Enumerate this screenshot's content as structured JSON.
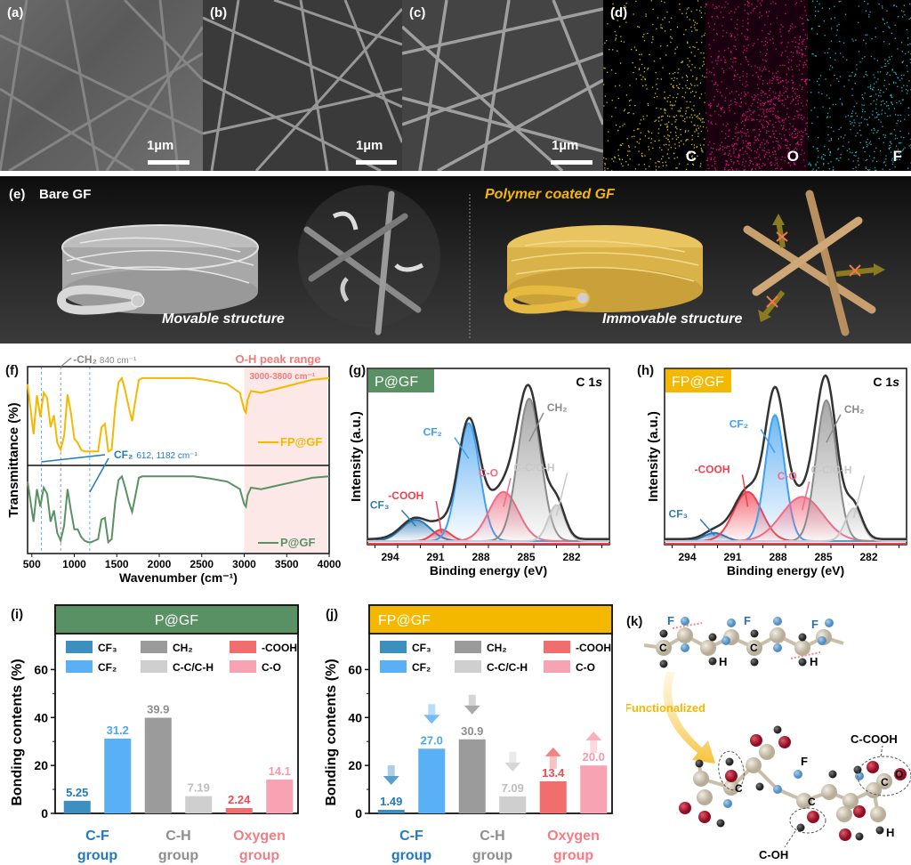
{
  "figure": {
    "panels": {
      "a": {
        "label": "(a)",
        "scale_bar": "1µm"
      },
      "b": {
        "label": "(b)",
        "scale_bar": "1µm"
      },
      "c": {
        "label": "(c)",
        "scale_bar": "1µm"
      },
      "d": {
        "label": "(d)",
        "maps": [
          {
            "element": "C",
            "color": "#d4c400"
          },
          {
            "element": "O",
            "color": "#d6127a"
          },
          {
            "element": "F",
            "color": "#18b8c8"
          }
        ]
      },
      "e": {
        "label": "(e)",
        "left_title": "Bare GF",
        "left_caption": "Movable structure",
        "right_title": "Polymer coated GF",
        "right_caption": "Immovable structure"
      },
      "f": {
        "label": "(f)"
      },
      "g": {
        "label": "(g)"
      },
      "h": {
        "label": "(h)"
      },
      "i": {
        "label": "(i)"
      },
      "j": {
        "label": "(j)"
      },
      "k": {
        "label": "(k)",
        "atom_labels_top": [
          "F",
          "F",
          "F",
          "C",
          "C",
          "H",
          "H"
        ],
        "arrow_label": "Functionalized",
        "annotations": [
          "C-COOH",
          "C-OH",
          "F",
          "C",
          "C",
          "C",
          "O",
          "H"
        ]
      }
    },
    "colors": {
      "pgf_green": "#5a9164",
      "fpgf_yellow": "#f5b800",
      "cf3": "#3d8fc0",
      "cf2": "#5ab0f5",
      "ch2": "#9b9b9b",
      "cc_ch": "#cfcfcf",
      "cooh": "#f26d6d",
      "co": "#f8a3b3",
      "cf_group_text": "#1f7ac0",
      "ch_group_text": "#8e8e8e",
      "oxygen_group_text": "#f37d86"
    }
  },
  "chart_data": [
    {
      "id": "f",
      "type": "line",
      "title": "",
      "xlabel": "Wavenumber (cm⁻¹)",
      "ylabel": "Transmittance (%)",
      "xlim": [
        450,
        4000
      ],
      "xticks": [
        500,
        1000,
        1500,
        2000,
        2500,
        3000,
        3500,
        4000
      ],
      "series": [
        {
          "name": "FP@GF",
          "color": "#f5b800",
          "x": [
            450,
            520,
            560,
            600,
            640,
            680,
            720,
            760,
            800,
            840,
            880,
            920,
            960,
            1000,
            1040,
            1080,
            1120,
            1160,
            1200,
            1240,
            1280,
            1320,
            1360,
            1400,
            1440,
            1480,
            1520,
            1560,
            1600,
            1640,
            1680,
            1720,
            1760,
            1800,
            2000,
            2200,
            2400,
            2600,
            2800,
            2950,
            3000,
            3020,
            3040,
            3080,
            3200,
            3400,
            3600,
            3800,
            4000
          ],
          "y": [
            0.88,
            0.3,
            0.75,
            0.5,
            0.78,
            0.72,
            0.38,
            0.52,
            0.2,
            0.12,
            0.28,
            0.76,
            0.55,
            0.25,
            0.2,
            0.12,
            0.1,
            0.1,
            0.1,
            0.1,
            0.1,
            0.38,
            0.42,
            0.1,
            0.12,
            0.6,
            0.9,
            0.95,
            0.8,
            0.62,
            0.45,
            0.7,
            0.93,
            0.95,
            0.95,
            0.95,
            0.95,
            0.92,
            0.88,
            0.78,
            0.58,
            0.55,
            0.7,
            0.8,
            0.78,
            0.83,
            0.88,
            0.93,
            0.95
          ]
        },
        {
          "name": "P@GF",
          "color": "#5a9164",
          "x": [
            450,
            520,
            560,
            600,
            640,
            680,
            720,
            760,
            800,
            840,
            880,
            920,
            960,
            1000,
            1040,
            1080,
            1120,
            1160,
            1200,
            1240,
            1280,
            1320,
            1360,
            1400,
            1440,
            1480,
            1520,
            1560,
            1600,
            1640,
            1680,
            1720,
            1760,
            1800,
            2000,
            2200,
            2400,
            2600,
            2800,
            2950,
            3000,
            3020,
            3040,
            3080,
            3200,
            3400,
            3600,
            3800,
            4000
          ],
          "y": [
            0.88,
            0.35,
            0.78,
            0.55,
            0.8,
            0.72,
            0.35,
            0.5,
            0.2,
            0.1,
            0.3,
            0.78,
            0.5,
            0.25,
            0.25,
            0.15,
            0.1,
            0.08,
            0.08,
            0.1,
            0.12,
            0.38,
            0.4,
            0.08,
            0.12,
            0.6,
            0.9,
            0.95,
            0.8,
            0.62,
            0.48,
            0.7,
            0.93,
            0.95,
            0.95,
            0.95,
            0.95,
            0.92,
            0.88,
            0.78,
            0.58,
            0.55,
            0.7,
            0.8,
            0.78,
            0.83,
            0.88,
            0.93,
            0.95
          ]
        }
      ],
      "annotations": {
        "ch2": {
          "text": "-CH₂",
          "detail": "840 cm⁻¹",
          "x": 840
        },
        "cf2": {
          "text": "CF₂",
          "detail": "612, 1182 cm⁻¹",
          "x": [
            612,
            1182
          ]
        },
        "oh_range": {
          "text": "O-H peak range",
          "detail": "3000-3800 cm⁻¹",
          "range": [
            3000,
            3800
          ]
        }
      }
    },
    {
      "id": "g",
      "type": "line",
      "title": "C 1s",
      "sample": "P@GF",
      "xlabel": "Binding energy (eV)",
      "ylabel": "Intensity (a.u.)",
      "xlim": [
        295.5,
        279.5
      ],
      "xticks": [
        294,
        291,
        288,
        285,
        282
      ],
      "peaks": [
        {
          "name": "CF₃",
          "center": 292.3,
          "height": 0.13,
          "fwhm": 2.2,
          "color": "#2d7ab8"
        },
        {
          "name": "-COOH",
          "center": 290.6,
          "height": 0.07,
          "fwhm": 1.4,
          "color": "#f0404f"
        },
        {
          "name": "CF₂",
          "center": 288.8,
          "height": 0.72,
          "fwhm": 1.7,
          "color": "#3f9ff0"
        },
        {
          "name": "C-O",
          "center": 286.5,
          "height": 0.3,
          "fwhm": 2.3,
          "color": "#f06d84"
        },
        {
          "name": "CH₂",
          "center": 284.8,
          "height": 0.87,
          "fwhm": 1.8,
          "color": "#8a8a8a"
        },
        {
          "name": "C-C/C-H",
          "center": 283.0,
          "height": 0.22,
          "fwhm": 1.3,
          "color": "#c8c8c8"
        }
      ]
    },
    {
      "id": "h",
      "type": "line",
      "title": "C 1s",
      "sample": "FP@GF",
      "xlabel": "Binding energy (eV)",
      "ylabel": "Intensity (a.u.)",
      "xlim": [
        295.5,
        279.5
      ],
      "xticks": [
        294,
        291,
        288,
        285,
        282
      ],
      "peaks": [
        {
          "name": "CF₃",
          "center": 292.2,
          "height": 0.05,
          "fwhm": 1.6,
          "color": "#2d7ab8"
        },
        {
          "name": "-COOH",
          "center": 290.0,
          "height": 0.3,
          "fwhm": 2.2,
          "color": "#f0404f"
        },
        {
          "name": "CF₂",
          "center": 288.2,
          "height": 0.77,
          "fwhm": 1.5,
          "color": "#3f9ff0"
        },
        {
          "name": "C-O",
          "center": 286.4,
          "height": 0.27,
          "fwhm": 3.2,
          "color": "#f06d84"
        },
        {
          "name": "CH₂",
          "center": 284.8,
          "height": 0.86,
          "fwhm": 1.6,
          "color": "#8a8a8a"
        },
        {
          "name": "C-C/C-H",
          "center": 283.0,
          "height": 0.2,
          "fwhm": 1.3,
          "color": "#c8c8c8"
        }
      ]
    },
    {
      "id": "i",
      "type": "bar",
      "title": "P@GF",
      "ylabel": "Bonding contents (%)",
      "ylim": [
        0,
        75
      ],
      "yticks": [
        0,
        20,
        40,
        60
      ],
      "categories": [
        "CF₃",
        "CF₂",
        "CH₂",
        "C-C/C-H",
        "-COOH",
        "C-O"
      ],
      "values": [
        5.25,
        31.2,
        39.9,
        7.19,
        2.24,
        14.1
      ],
      "value_labels": [
        "5.25",
        "31.2",
        "39.9",
        "7.19",
        "2.24",
        "14.1"
      ],
      "groups": [
        {
          "name": [
            "C-F",
            "group"
          ],
          "members": [
            "CF₃",
            "CF₂"
          ]
        },
        {
          "name": [
            "C-H",
            "group"
          ],
          "members": [
            "CH₂",
            "C-C/C-H"
          ]
        },
        {
          "name": [
            "Oxygen",
            "group"
          ],
          "members": [
            "-COOH",
            "C-O"
          ]
        }
      ],
      "legend": [
        "CF₃",
        "CH₂",
        "-COOH",
        "CF₂",
        "C-C/C-H",
        "C-O"
      ],
      "legend_position": "top"
    },
    {
      "id": "j",
      "type": "bar",
      "title": "FP@GF",
      "ylabel": "Bonding contents (%)",
      "ylim": [
        0,
        75
      ],
      "yticks": [
        0,
        20,
        40,
        60
      ],
      "categories": [
        "CF₃",
        "CF₂",
        "CH₂",
        "C-C/C-H",
        "-COOH",
        "C-O"
      ],
      "values": [
        1.49,
        27.0,
        30.9,
        7.09,
        13.4,
        20.0
      ],
      "value_labels": [
        "1.49",
        "27.0",
        "30.9",
        "7.09",
        "13.4",
        "20.0"
      ],
      "change": [
        "down",
        "down",
        "down",
        "down",
        "up",
        "up"
      ],
      "groups": [
        {
          "name": [
            "C-F",
            "group"
          ],
          "members": [
            "CF₃",
            "CF₂"
          ]
        },
        {
          "name": [
            "C-H",
            "group"
          ],
          "members": [
            "CH₂",
            "C-C/C-H"
          ]
        },
        {
          "name": [
            "Oxygen",
            "group"
          ],
          "members": [
            "-COOH",
            "C-O"
          ]
        }
      ],
      "legend": [
        "CF₃",
        "CH₂",
        "-COOH",
        "CF₂",
        "C-C/C-H",
        "C-O"
      ],
      "legend_position": "top"
    }
  ]
}
